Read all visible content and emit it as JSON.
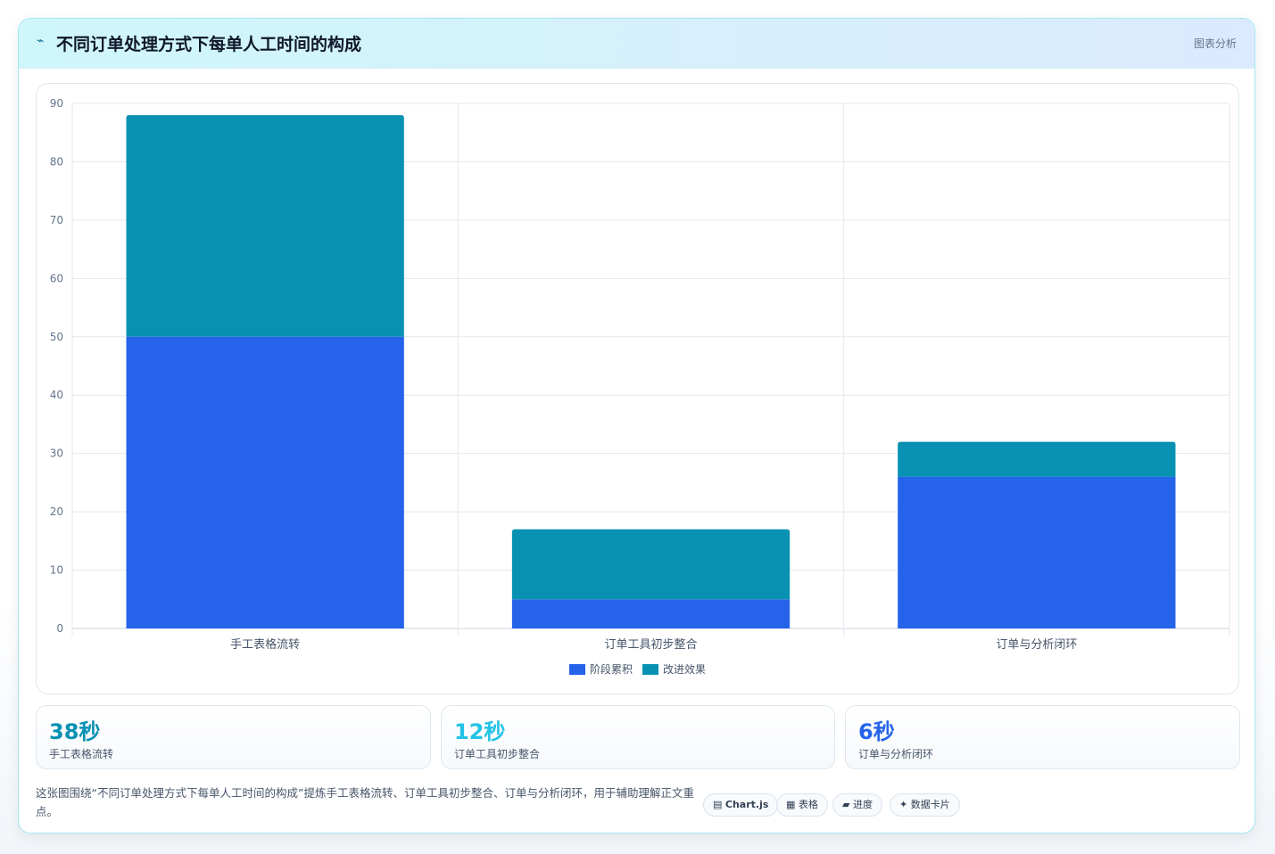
{
  "header": {
    "icon": "chart-icon",
    "title": "不同订单处理方式下每单人工时间的构成",
    "tag": "图表分析"
  },
  "chart_data": {
    "type": "bar",
    "stacked": true,
    "categories": [
      "手工表格流转",
      "订单工具初步整合",
      "订单与分析闭环"
    ],
    "series": [
      {
        "name": "阶段累积",
        "values": [
          50,
          5,
          26
        ],
        "color": "#2563eb"
      },
      {
        "name": "改进效果",
        "values": [
          38,
          12,
          6
        ],
        "color": "#0891b2"
      }
    ],
    "ylim": [
      0,
      90
    ],
    "yticks": [
      0,
      10,
      20,
      30,
      40,
      50,
      60,
      70,
      80,
      90
    ],
    "grid": true,
    "legend": "bottom"
  },
  "stats": [
    {
      "value": "38秒",
      "label": "手工表格流转",
      "color": "#0891b2"
    },
    {
      "value": "12秒",
      "label": "订单工具初步整合",
      "color": "#22c3e6"
    },
    {
      "value": "6秒",
      "label": "订单与分析闭环",
      "color": "#2563eb"
    }
  ],
  "footer": {
    "text": "这张图围绕“不同订单处理方式下每单人工时间的构成”提炼手工表格流转、订单工具初步整合、订单与分析闭环，用于辅助理解正文重点。"
  },
  "chips": [
    {
      "icon": "▤",
      "label": "Chart.js"
    },
    {
      "icon": "▦",
      "label": "表格"
    },
    {
      "icon": "▰",
      "label": "进度"
    },
    {
      "icon": "✦",
      "label": "数据卡片"
    }
  ]
}
